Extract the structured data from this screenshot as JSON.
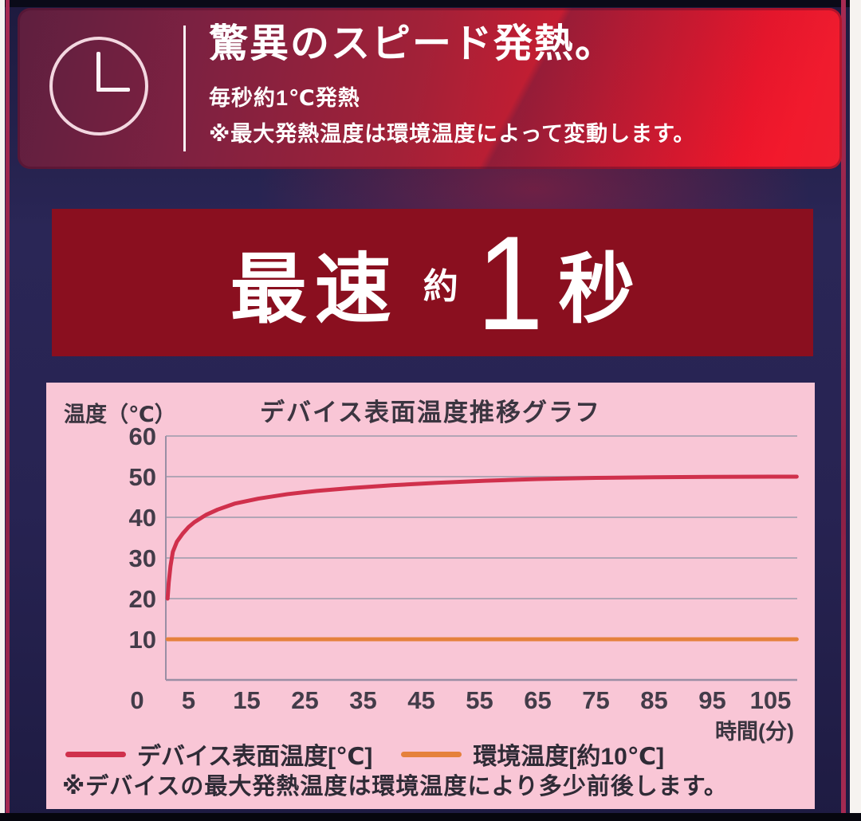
{
  "header": {
    "icon": "clock-icon",
    "title": "驚異のスピード発熱。",
    "subtitle": "毎秒約1℃発熱",
    "note": "※最大発熱温度は環境温度によって変動します。"
  },
  "banner": {
    "prefix": "最速",
    "approx": "約",
    "value": "1",
    "unit": "秒"
  },
  "chart_data": {
    "type": "line",
    "title": "デバイス表面温度推移グラフ",
    "ylabel": "温度（℃）",
    "xlabel": "時間(分)",
    "xlim": [
      0,
      110
    ],
    "ylim": [
      0,
      60
    ],
    "yticks": [
      60,
      50,
      40,
      30,
      20,
      10
    ],
    "xticks": [
      0,
      5,
      15,
      25,
      35,
      45,
      55,
      65,
      75,
      85,
      95,
      105
    ],
    "grid": true,
    "legend_position": "bottom",
    "series": [
      {
        "name": "デバイス表面温度[℃]",
        "color": "#d0304c",
        "x": [
          1.4,
          1.6,
          1.9,
          2.3,
          3,
          4,
          5,
          6,
          8,
          10,
          13,
          17,
          22,
          27,
          33,
          40,
          48,
          56,
          65,
          75,
          85,
          95,
          105,
          109.5
        ],
        "y": [
          20,
          24,
          28,
          31.5,
          34,
          36,
          37.6,
          38.8,
          40.6,
          41.9,
          43.4,
          44.6,
          45.7,
          46.5,
          47.2,
          47.9,
          48.5,
          49.0,
          49.4,
          49.7,
          49.85,
          49.95,
          50,
          50
        ]
      },
      {
        "name": "環境温度[約10℃]",
        "color": "#e5813c",
        "x": [
          1.4,
          109.5
        ],
        "y": [
          10,
          10
        ]
      }
    ],
    "footnote": "※デバイスの最大発熱温度は環境温度により多少前後します。"
  },
  "colors": {
    "background_navy": "#272352",
    "banner_bg": "#8a0f1f",
    "chart_bg": "#f9c6d6",
    "grid_line": "#b2a5b5",
    "axis_line": "#9a8ea4",
    "series_red": "#d0304c",
    "series_orange": "#e5813c"
  }
}
